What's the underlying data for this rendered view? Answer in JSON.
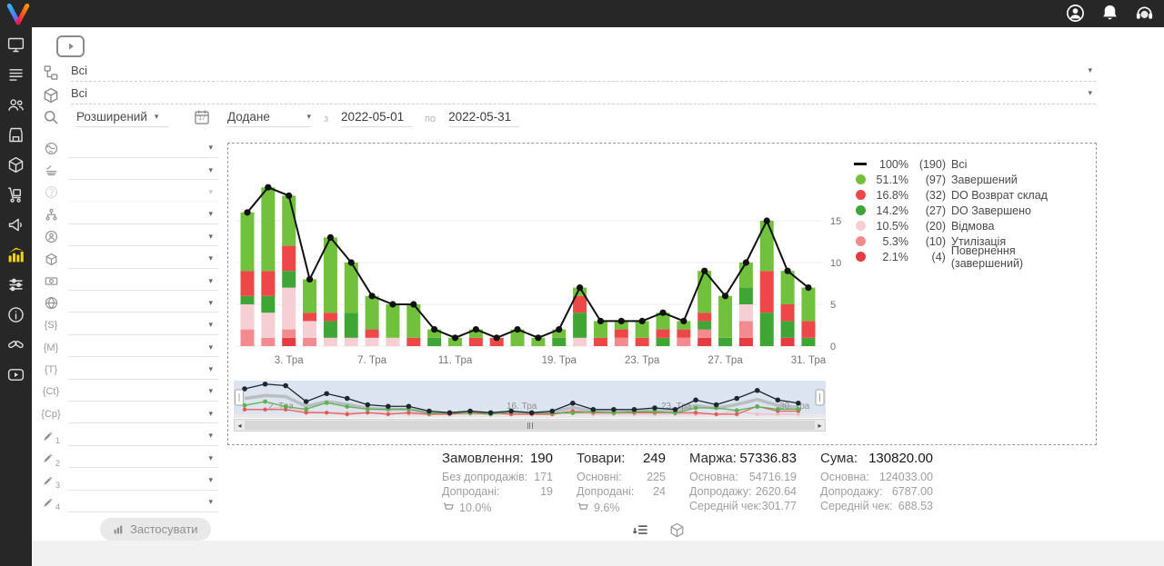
{
  "header": {
    "icons": [
      {
        "name": "user-icon"
      },
      {
        "name": "bell-icon"
      },
      {
        "name": "support-headset-icon"
      }
    ]
  },
  "sidebar": {
    "items": [
      {
        "icon": "monitor",
        "active": false
      },
      {
        "icon": "orders-list",
        "active": false
      },
      {
        "icon": "users",
        "active": false
      },
      {
        "icon": "store",
        "active": false
      },
      {
        "icon": "products-box",
        "active": false
      },
      {
        "icon": "trolley",
        "active": false
      },
      {
        "icon": "megaphone",
        "active": false
      },
      {
        "icon": "statistics",
        "active": true
      },
      {
        "icon": "sliders",
        "active": false
      },
      {
        "icon": "info",
        "active": false
      },
      {
        "icon": "handshake",
        "active": false
      },
      {
        "icon": "video",
        "active": false
      }
    ]
  },
  "filters": {
    "category_value": "Всі",
    "product_value": "Всі",
    "search_mode_value": "Розширений",
    "date_field_value": "Додане",
    "date_from_label": "з",
    "date_from": "2022-05-01",
    "date_to_label": "по",
    "date_to": "2022-05-31",
    "calendar_day": "17",
    "left_rows": [
      {
        "icon": "globe-land",
        "disabled": false
      },
      {
        "icon": "layers",
        "disabled": false
      },
      {
        "icon": "question",
        "disabled": true
      },
      {
        "icon": "hierarchy",
        "disabled": false
      },
      {
        "icon": "person-circle",
        "disabled": false
      },
      {
        "icon": "cube",
        "disabled": false
      },
      {
        "icon": "money",
        "disabled": false
      },
      {
        "icon": "globe-grid",
        "disabled": false
      },
      {
        "icon": "tag",
        "tag": "{S}",
        "disabled": false
      },
      {
        "icon": "tag",
        "tag": "{M}",
        "disabled": false
      },
      {
        "icon": "tag",
        "tag": "{T}",
        "disabled": false
      },
      {
        "icon": "tag",
        "tag": "{Ct}",
        "disabled": false
      },
      {
        "icon": "tag",
        "tag": "{Cp}",
        "disabled": false
      },
      {
        "icon": "pencil",
        "num": "1",
        "disabled": false
      },
      {
        "icon": "pencil",
        "num": "2",
        "disabled": false
      },
      {
        "icon": "pencil",
        "num": "3",
        "disabled": false
      },
      {
        "icon": "pencil",
        "num": "4",
        "disabled": false
      }
    ],
    "apply_label": "Застосувати"
  },
  "chart_data": {
    "type": "stacked-bar-with-line",
    "x_days": [
      1,
      2,
      3,
      4,
      5,
      6,
      7,
      8,
      9,
      10,
      11,
      12,
      14,
      16,
      18,
      19,
      20,
      21,
      22,
      23,
      24,
      25,
      26,
      27,
      28,
      29,
      30,
      31
    ],
    "xtick_labels": {
      "3": "3. Тра",
      "7": "7. Тра",
      "11": "11. Тра",
      "19": "19. Тра",
      "23": "23. Тра",
      "27": "27. Тра",
      "31": "31. Тра"
    },
    "yticks": [
      0,
      5,
      10,
      15
    ],
    "line_total": [
      16,
      19,
      18,
      8,
      13,
      10,
      6,
      5,
      5,
      2,
      1,
      2,
      1,
      2,
      1,
      2,
      7,
      3,
      3,
      3,
      4,
      3,
      9,
      6,
      10,
      15,
      9,
      7
    ],
    "stack_order": [
      "returns_completed",
      "utilization",
      "refusal",
      "do_completed",
      "do_return",
      "completed"
    ],
    "series": [
      {
        "key": "completed",
        "name": "Завершений",
        "color": "#72c13c",
        "values": [
          7,
          10,
          6,
          4,
          9,
          6,
          4,
          4,
          4,
          1,
          1,
          1,
          0,
          2,
          1,
          1,
          1,
          2,
          1,
          2,
          2,
          1,
          5,
          5,
          3,
          6,
          4,
          4
        ]
      },
      {
        "key": "do_return",
        "name": "DO Возврат склад",
        "color": "#ee4747",
        "values": [
          3,
          3,
          3,
          1,
          1,
          0,
          1,
          0,
          1,
          0,
          0,
          1,
          1,
          0,
          0,
          0,
          2,
          1,
          1,
          1,
          1,
          1,
          1,
          0,
          0,
          5,
          2,
          2
        ]
      },
      {
        "key": "do_completed",
        "name": "DO Завершено",
        "color": "#3fa535",
        "values": [
          1,
          2,
          2,
          0,
          2,
          3,
          0,
          0,
          0,
          1,
          0,
          0,
          0,
          0,
          0,
          1,
          3,
          0,
          0,
          0,
          1,
          0,
          1,
          1,
          2,
          4,
          2,
          1
        ]
      },
      {
        "key": "refusal",
        "name": "Відмова",
        "color": "#f6cfd4",
        "values": [
          3,
          3,
          5,
          2,
          1,
          1,
          1,
          1,
          0,
          0,
          0,
          0,
          0,
          0,
          0,
          0,
          1,
          0,
          0,
          0,
          0,
          0,
          0,
          0,
          2,
          0,
          0,
          0
        ]
      },
      {
        "key": "utilization",
        "name": "Утилізація",
        "color": "#f28a8e",
        "values": [
          2,
          1,
          1,
          1,
          0,
          0,
          0,
          0,
          0,
          0,
          0,
          0,
          0,
          0,
          0,
          0,
          0,
          0,
          1,
          0,
          0,
          1,
          1,
          0,
          2,
          0,
          0,
          0
        ]
      },
      {
        "key": "returns_completed",
        "name": "Повернення (завершений)",
        "color": "#e63b41",
        "values": [
          0,
          0,
          1,
          0,
          0,
          0,
          0,
          0,
          0,
          0,
          0,
          0,
          0,
          0,
          0,
          0,
          0,
          0,
          0,
          0,
          0,
          0,
          1,
          0,
          1,
          0,
          1,
          0
        ]
      }
    ],
    "legend": [
      {
        "marker": "line",
        "color": "#111111",
        "pct": "100%",
        "count": "(190)",
        "label": "Всі"
      },
      {
        "marker": "dot",
        "color": "#72c13c",
        "pct": "51.1%",
        "count": "(97)",
        "label": "Завершений"
      },
      {
        "marker": "dot",
        "color": "#ee4747",
        "pct": "16.8%",
        "count": "(32)",
        "label": "DO Возврат склад"
      },
      {
        "marker": "dot",
        "color": "#3fa535",
        "pct": "14.2%",
        "count": "(27)",
        "label": "DO Завершено"
      },
      {
        "marker": "dot",
        "color": "#f6cfd4",
        "pct": "10.5%",
        "count": "(20)",
        "label": "Відмова"
      },
      {
        "marker": "dot",
        "color": "#f28a8e",
        "pct": "5.3%",
        "count": "(10)",
        "label": "Утилізація"
      },
      {
        "marker": "dot",
        "color": "#e63b41",
        "pct": "2.1%",
        "count": "(4)",
        "label": "Повернення (завершений)"
      }
    ],
    "navigator_labels": [
      "2. Тра",
      "16. Тра",
      "23. Тра",
      "30. Тра"
    ]
  },
  "stats": {
    "columns": [
      {
        "title": "Замовлення:",
        "value": "190",
        "rows": [
          {
            "l": "Без допродажів:",
            "v": "171"
          },
          {
            "l": "Допродані:",
            "v": "19"
          }
        ],
        "cart_pct": "10.0%"
      },
      {
        "title": "Товари:",
        "value": "249",
        "rows": [
          {
            "l": "Основні:",
            "v": "225"
          },
          {
            "l": "Допродані:",
            "v": "24"
          }
        ],
        "cart_pct": "9.6%"
      },
      {
        "title": "Маржа:",
        "value": "57336.83",
        "rows": [
          {
            "l": "Основна:",
            "v": "54716.19"
          },
          {
            "l": "Допродажу:",
            "v": "2620.64"
          },
          {
            "l": "Середній чек:",
            "v": "301.77"
          }
        ],
        "cart_pct": null
      },
      {
        "title": "Сума:",
        "value": "130820.00",
        "rows": [
          {
            "l": "Основна:",
            "v": "124033.00"
          },
          {
            "l": "Допродажу:",
            "v": "6787.00"
          },
          {
            "l": "Середній чек:",
            "v": "688.53"
          }
        ],
        "cart_pct": null
      }
    ]
  }
}
